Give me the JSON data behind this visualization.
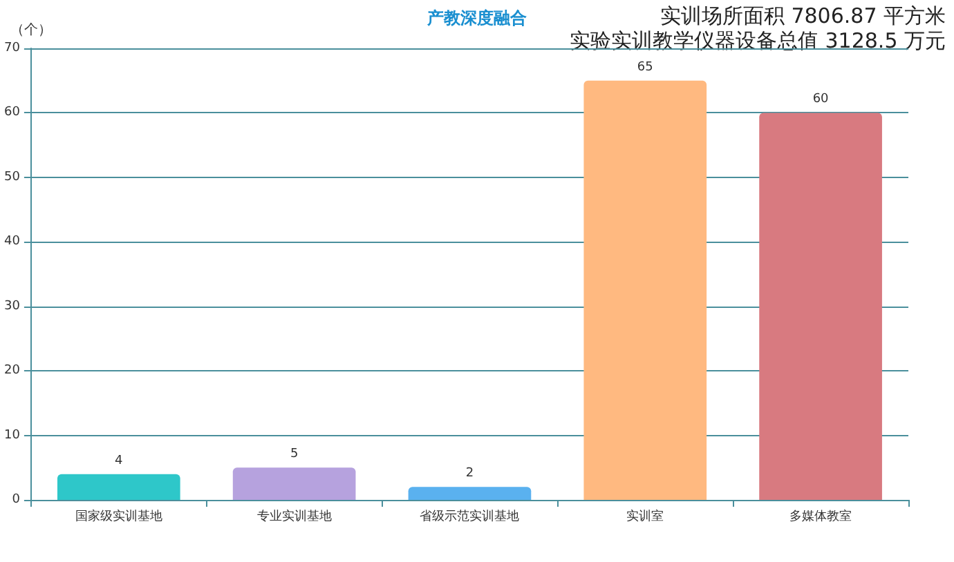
{
  "chart_data": {
    "type": "bar",
    "title": "产教深度融合",
    "ylabel": "（个）",
    "annotations": [
      "实训场所面积 7806.87 平方米",
      "实验实训教学仪器设备总值 3128.5 万元"
    ],
    "categories": [
      "国家级实训基地",
      "专业实训基地",
      "省级示范实训基地",
      "实训室",
      "多媒体教室"
    ],
    "values": [
      4,
      5,
      2,
      65,
      60
    ],
    "colors": [
      "#2ec7c9",
      "#b6a2de",
      "#5ab1ef",
      "#ffb980",
      "#d87a80"
    ],
    "ylim": [
      0,
      70
    ],
    "yticks": [
      0,
      10,
      20,
      30,
      40,
      50,
      60,
      70
    ],
    "grid": "y",
    "data_labels": true
  }
}
